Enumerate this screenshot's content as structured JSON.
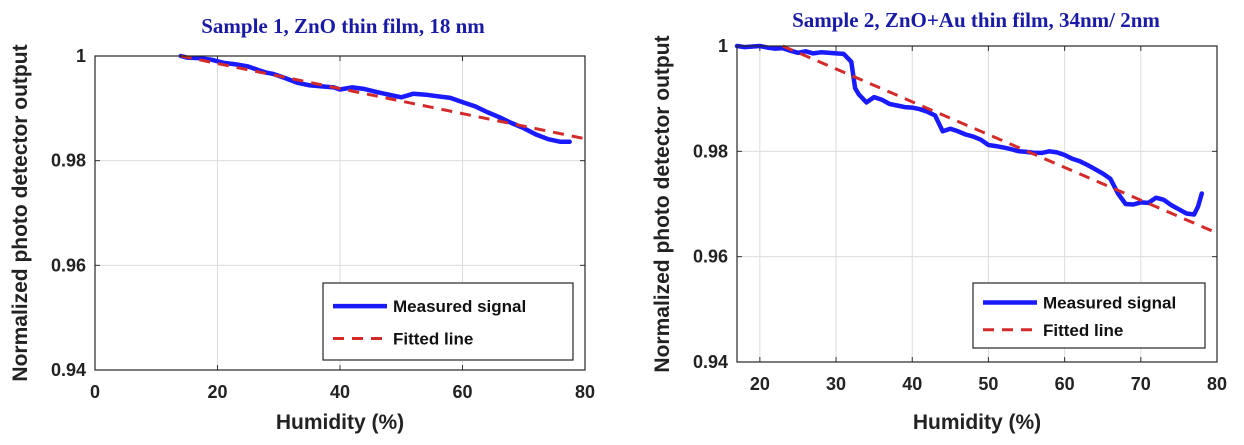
{
  "chart_data": [
    {
      "type": "line",
      "title": "Sample 1, ZnO thin film, 18 nm",
      "xlabel": "Humidity (%)",
      "ylabel": "Normalized photo detector output",
      "xlim": [
        0,
        80
      ],
      "ylim": [
        0.94,
        1.0
      ],
      "xticks": [
        0,
        20,
        40,
        60,
        80
      ],
      "xtick_labels": [
        "0",
        "20",
        "40",
        "60",
        "80"
      ],
      "yticks": [
        0.94,
        0.96,
        0.98,
        1.0
      ],
      "ytick_labels": [
        "0.94",
        "0.96",
        "0.98",
        "1"
      ],
      "grid": true,
      "legend_position": "bottom-right",
      "colors": {
        "measured": "#1a1aff",
        "fitted": "#d42a2a"
      },
      "series": [
        {
          "name": "Measured signal",
          "style": "solid",
          "x": [
            14,
            15,
            17,
            19,
            21,
            23,
            25,
            27,
            28,
            29,
            31,
            33,
            35,
            37,
            39,
            40,
            42,
            44,
            46,
            48,
            50,
            52,
            54,
            56,
            58,
            60,
            62,
            64,
            66,
            68,
            70,
            72,
            74,
            76,
            77.5
          ],
          "y": [
            1.0,
            0.9997,
            0.9996,
            0.9993,
            0.9987,
            0.9984,
            0.998,
            0.9972,
            0.9968,
            0.9966,
            0.9958,
            0.9949,
            0.9944,
            0.9942,
            0.994,
            0.9936,
            0.994,
            0.9937,
            0.9931,
            0.9926,
            0.9921,
            0.9928,
            0.9926,
            0.9923,
            0.992,
            0.9912,
            0.9904,
            0.9893,
            0.9883,
            0.9872,
            0.9862,
            0.985,
            0.9841,
            0.9836,
            0.9836
          ]
        },
        {
          "name": "Fitted line",
          "style": "dashed",
          "x": [
            14,
            80
          ],
          "y": [
            1.0,
            0.9842
          ]
        }
      ]
    },
    {
      "type": "line",
      "title": "Sample 2, ZnO+Au thin film, 34nm/ 2nm",
      "xlabel": "Humidity (%)",
      "ylabel": "Normalized photo detector output",
      "xlim": [
        17,
        80
      ],
      "ylim": [
        0.94,
        1.0
      ],
      "xticks": [
        20,
        30,
        40,
        50,
        60,
        70,
        80
      ],
      "xtick_labels": [
        "20",
        "30",
        "40",
        "50",
        "60",
        "70",
        "80"
      ],
      "yticks": [
        0.94,
        0.96,
        0.98,
        1.0
      ],
      "ytick_labels": [
        "0.94",
        "0.96",
        "0.98",
        "1"
      ],
      "grid": true,
      "legend_position": "bottom-right",
      "colors": {
        "measured": "#1a1aff",
        "fitted": "#d42a2a"
      },
      "series": [
        {
          "name": "Measured signal",
          "style": "solid",
          "x": [
            17,
            18,
            20,
            21,
            22,
            23,
            24,
            25,
            26,
            27,
            28,
            29,
            30,
            31,
            32,
            32.5,
            33,
            34,
            35,
            36,
            37,
            38,
            39,
            40,
            41,
            42,
            43,
            44,
            45,
            46,
            47,
            48,
            49,
            50,
            51,
            52,
            53,
            54,
            55,
            56,
            57,
            58,
            59,
            60,
            61,
            62,
            63,
            64,
            65,
            66,
            67,
            68,
            69,
            70,
            71,
            72,
            73,
            74,
            75,
            76,
            77,
            77.5,
            78
          ],
          "y": [
            1.0,
            0.9998,
            1.0,
            0.9997,
            0.9995,
            0.9996,
            0.9991,
            0.9987,
            0.999,
            0.9986,
            0.9988,
            0.9987,
            0.9986,
            0.9985,
            0.997,
            0.992,
            0.9908,
            0.9893,
            0.9903,
            0.9898,
            0.989,
            0.9887,
            0.9884,
            0.9883,
            0.988,
            0.9875,
            0.9868,
            0.9838,
            0.9843,
            0.9838,
            0.9832,
            0.9828,
            0.9822,
            0.9812,
            0.981,
            0.9807,
            0.9804,
            0.98,
            0.9799,
            0.9797,
            0.9797,
            0.98,
            0.9798,
            0.9793,
            0.9786,
            0.9781,
            0.9774,
            0.9766,
            0.9758,
            0.9748,
            0.972,
            0.97,
            0.9699,
            0.9703,
            0.9702,
            0.9712,
            0.9708,
            0.9698,
            0.969,
            0.9682,
            0.968,
            0.9695,
            0.972
          ]
        },
        {
          "name": "Fitted line",
          "style": "dashed",
          "x": [
            23,
            80
          ],
          "y": [
            1.0,
            0.9645
          ]
        }
      ]
    }
  ]
}
